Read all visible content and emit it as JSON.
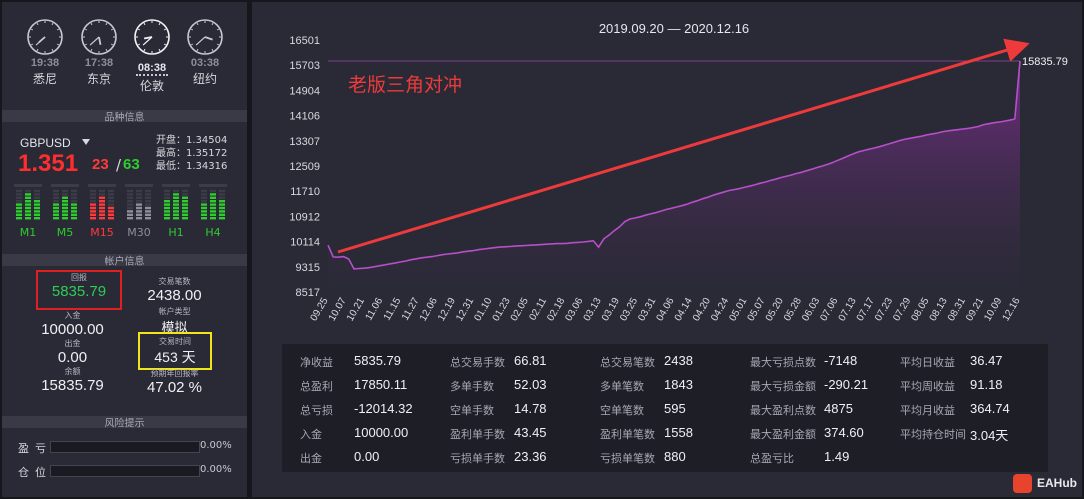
{
  "clocks": [
    {
      "time": "19:38",
      "city": "悉尼",
      "hour": 7,
      "minute": 38,
      "active": false
    },
    {
      "time": "17:38",
      "city": "东京",
      "hour": 5,
      "minute": 38,
      "active": false
    },
    {
      "time": "08:38",
      "city": "伦敦",
      "hour": 8,
      "minute": 38,
      "active": true
    },
    {
      "time": "03:38",
      "city": "纽约",
      "hour": 3,
      "minute": 38,
      "active": false
    }
  ],
  "sections": {
    "symbol": "品种信息",
    "account": "帐户信息",
    "risk": "风险提示"
  },
  "symbol": {
    "name": "GBPUSD",
    "price": "1.351",
    "bid_pips": "23",
    "slash": "/",
    "ask_pips": "63",
    "open": "开盘：1.34504",
    "high": "最高：1.35172",
    "low": "最低：1.34316",
    "colors": {
      "price": "#ff2e2e",
      "ask": "#2ecc2e"
    },
    "timeframes": [
      {
        "label": "M1",
        "color": "#2ecc2e",
        "levels": [
          0.55,
          0.8,
          0.65
        ]
      },
      {
        "label": "M5",
        "color": "#2ecc2e",
        "levels": [
          0.5,
          0.75,
          0.45
        ]
      },
      {
        "label": "M15",
        "color": "#ff3a3a",
        "levels": [
          0.45,
          0.7,
          0.4
        ]
      },
      {
        "label": "M30",
        "color": "#8e8e9a",
        "levels": [
          0.3,
          0.5,
          0.35
        ]
      },
      {
        "label": "H1",
        "color": "#2ecc2e",
        "levels": [
          0.6,
          0.85,
          0.7
        ]
      },
      {
        "label": "H4",
        "color": "#2ecc2e",
        "levels": [
          0.5,
          0.8,
          0.6
        ]
      }
    ]
  },
  "account": {
    "return_label": "回报",
    "return_value": "5835.79",
    "trades_label": "交易笔数",
    "trades_value": "2438.00",
    "deposit_label": "入金",
    "deposit_value": "10000.00",
    "acct_type_label": "帐户类型",
    "acct_type_value": "模拟",
    "withdraw_label": "出金",
    "withdraw_value": "0.00",
    "trade_time_label": "交易时间",
    "trade_time_value": "453 天",
    "balance_label": "余额",
    "balance_value": "15835.79",
    "annual_label": "预期年回报率",
    "annual_value": "47.02 %"
  },
  "risk": [
    {
      "label": "盈亏",
      "value": "0.00%",
      "fraction": 0
    },
    {
      "label": "仓位",
      "value": "0.00%",
      "fraction": 0
    }
  ],
  "chart_data": {
    "type": "area",
    "title": "2019.09.20 — 2020.12.16",
    "annotation": "老版三角对冲",
    "last_value_label": "15835.79",
    "ylim": [
      8517,
      16501
    ],
    "yticks": [
      8517,
      9315,
      10114,
      10912,
      11710,
      12509,
      13307,
      14106,
      14904,
      15703,
      16501
    ],
    "xticks": [
      "09.25",
      "10.07",
      "10.21",
      "11.06",
      "11.15",
      "11.27",
      "12.06",
      "12.19",
      "12.31",
      "01.10",
      "01.23",
      "02.05",
      "02.11",
      "02.18",
      "03.06",
      "03.13",
      "03.19",
      "03.25",
      "03.31",
      "04.06",
      "04.14",
      "04.20",
      "04.24",
      "05.01",
      "05.07",
      "05.20",
      "05.28",
      "06.03",
      "07.06",
      "07.13",
      "07.17",
      "07.23",
      "07.29",
      "08.05",
      "08.13",
      "08.31",
      "09.21",
      "10.09",
      "12.16"
    ],
    "y": [
      10000,
      9630,
      9620,
      9640,
      9560,
      9250,
      9260,
      9270,
      9290,
      9320,
      9350,
      9380,
      9410,
      9440,
      9470,
      9500,
      9540,
      9570,
      9600,
      9620,
      9640,
      9670,
      9700,
      9720,
      9740,
      9760,
      9790,
      9810,
      9830,
      9860,
      9880,
      9900,
      9920,
      9940,
      9950,
      9960,
      9970,
      9980,
      9990,
      10000,
      10010,
      10020,
      10030,
      10040,
      10050,
      10050,
      10060,
      10080,
      10090,
      10100,
      10120,
      10140,
      9940,
      10200,
      10320,
      10460,
      10580,
      10740,
      10830,
      10860,
      10900,
      10950,
      10990,
      11030,
      11080,
      11130,
      11170,
      11210,
      11250,
      11300,
      11360,
      11410,
      11470,
      11520,
      11580,
      11630,
      11680,
      11730,
      11760,
      11790,
      11830,
      11870,
      11910,
      11960,
      12000,
      12050,
      12090,
      12140,
      12180,
      12220,
      12270,
      12310,
      12360,
      12410,
      12460,
      12510,
      12560,
      12620,
      12690,
      12760,
      12830,
      12900,
      12960,
      13000,
      13040,
      13080,
      13120,
      13170,
      13220,
      13270,
      13320,
      13360,
      13390,
      13420,
      13450,
      13490,
      13520,
      13550,
      13590,
      13620,
      13640,
      13660,
      13680,
      13700,
      13730,
      13760,
      13820,
      13850,
      13880,
      13900,
      13930,
      13960,
      14000,
      15835.79
    ],
    "colors": {
      "line": "#b64fc8",
      "fill_top": "#7a2f8c",
      "fill_bottom": "#2a2a36",
      "arrow": "#ee3a3a",
      "grid": "#3a3a47"
    }
  },
  "stats": [
    [
      {
        "label": "净收益",
        "value": "5835.79"
      },
      {
        "label": "总盈利",
        "value": "17850.11"
      },
      {
        "label": "总亏损",
        "value": "-12014.32"
      },
      {
        "label": "入金",
        "value": "10000.00"
      },
      {
        "label": "出金",
        "value": "0.00"
      }
    ],
    [
      {
        "label": "总交易手数",
        "value": "66.81"
      },
      {
        "label": "多单手数",
        "value": "52.03"
      },
      {
        "label": "空单手数",
        "value": "14.78"
      },
      {
        "label": "盈利单手数",
        "value": "43.45"
      },
      {
        "label": "亏损单手数",
        "value": "23.36"
      }
    ],
    [
      {
        "label": "总交易笔数",
        "value": "2438"
      },
      {
        "label": "多单笔数",
        "value": "1843"
      },
      {
        "label": "空单笔数",
        "value": "595"
      },
      {
        "label": "盈利单笔数",
        "value": "1558"
      },
      {
        "label": "亏损单笔数",
        "value": "880"
      }
    ],
    [
      {
        "label": "最大亏损点数",
        "value": "-7148"
      },
      {
        "label": "最大亏损金额",
        "value": "-290.21"
      },
      {
        "label": "最大盈利点数",
        "value": "4875"
      },
      {
        "label": "最大盈利金额",
        "value": "374.60"
      },
      {
        "label": "总盈亏比",
        "value": "1.49"
      }
    ],
    [
      {
        "label": "平均日收益",
        "value": "36.47"
      },
      {
        "label": "平均周收益",
        "value": "91.18"
      },
      {
        "label": "平均月收益",
        "value": "364.74"
      },
      {
        "label": "平均持仓时间",
        "value": "3.04天"
      }
    ]
  ],
  "watermark": "EAHub"
}
